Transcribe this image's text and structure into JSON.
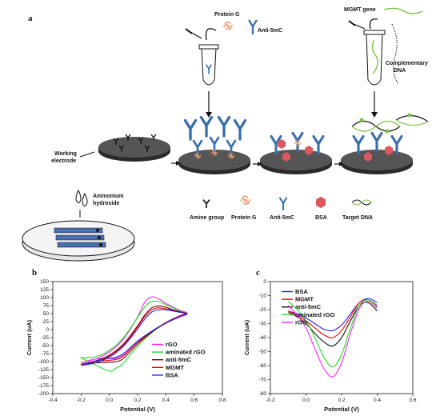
{
  "panels": {
    "a": "a",
    "b": "b",
    "c": "c"
  },
  "schematic": {
    "protein_g": "Protein G",
    "anti_5mc": "Anti-5mC",
    "mgmt_gene": "MGMT gene",
    "complementary_dna": [
      "Complementary",
      "DNA"
    ],
    "working_electrode": [
      "Working",
      "electrode"
    ],
    "ammonium_hydroxide": [
      "Ammonium",
      "hydroxide"
    ],
    "legend": [
      "Amine group",
      "Protein G",
      "Anti-5mC",
      "BSA",
      "Target DNA"
    ]
  },
  "colors": {
    "antibody": "#3a6fa8",
    "protein_g": "#e8956a",
    "bsa": "#d9595f",
    "dna_green": "#7cc144",
    "electrode_top": "#4a4a4a",
    "electrode_side": "#2a2a2a"
  },
  "chart_data": [
    {
      "type": "line",
      "panel": "b",
      "title": "",
      "xlabel": "Potential (V)",
      "ylabel": "Current (uA)",
      "xlim": [
        -0.4,
        0.8
      ],
      "ylim": [
        -200,
        150
      ],
      "xticks": [
        -0.4,
        -0.2,
        0,
        0.2,
        0.4,
        0.6,
        0.8
      ],
      "xtick_labels": [
        "-0.4",
        "-0.2",
        "0.0",
        "0.2",
        "0.4",
        "0.6",
        "0.8"
      ],
      "yticks": [
        -200,
        -175,
        -150,
        -125,
        -100,
        -75,
        -50,
        -25,
        0,
        25,
        50,
        75,
        100,
        125,
        150
      ],
      "legend_position": "bottom-right",
      "series": [
        {
          "name": "rGO",
          "color": "#ff22ff",
          "closed": true,
          "x": [
            -0.2,
            -0.1,
            0.0,
            0.1,
            0.2,
            0.25,
            0.3,
            0.35,
            0.4,
            0.45,
            0.5,
            0.55,
            0.5,
            0.4,
            0.3,
            0.2,
            0.1,
            0.05,
            0.0,
            -0.1,
            -0.2
          ],
          "y": [
            -103,
            -92,
            -70,
            -30,
            40,
            85,
            102,
            96,
            82,
            70,
            60,
            52,
            44,
            22,
            -5,
            -40,
            -80,
            -90,
            -90,
            -92,
            -103
          ]
        },
        {
          "name": "aminated rGO",
          "color": "#22dd22",
          "closed": true,
          "x": [
            -0.2,
            -0.1,
            0.0,
            0.1,
            0.2,
            0.25,
            0.3,
            0.35,
            0.4,
            0.45,
            0.5,
            0.55,
            0.5,
            0.4,
            0.3,
            0.2,
            0.1,
            0.05,
            0.0,
            -0.1,
            -0.2
          ],
          "y": [
            -88,
            -85,
            -65,
            -25,
            38,
            70,
            88,
            87,
            78,
            68,
            58,
            50,
            42,
            20,
            -10,
            -52,
            -105,
            -120,
            -130,
            -110,
            -88
          ]
        },
        {
          "name": "anti-5mC",
          "color": "#660000",
          "closed": true,
          "x": [
            -0.2,
            -0.1,
            0.0,
            0.1,
            0.2,
            0.25,
            0.3,
            0.35,
            0.4,
            0.45,
            0.5,
            0.55,
            0.5,
            0.4,
            0.3,
            0.2,
            0.1,
            0.05,
            0.0,
            -0.1,
            -0.2
          ],
          "y": [
            -108,
            -98,
            -80,
            -45,
            12,
            45,
            68,
            74,
            70,
            62,
            56,
            50,
            42,
            22,
            -8,
            -45,
            -90,
            -100,
            -102,
            -104,
            -108
          ]
        },
        {
          "name": "MGMT",
          "color": "#ee0000",
          "closed": true,
          "x": [
            -0.2,
            -0.1,
            0.0,
            0.1,
            0.2,
            0.25,
            0.3,
            0.35,
            0.4,
            0.45,
            0.5,
            0.55,
            0.5,
            0.4,
            0.3,
            0.2,
            0.1,
            0.05,
            0.0,
            -0.1,
            -0.2
          ],
          "y": [
            -110,
            -100,
            -82,
            -48,
            8,
            40,
            62,
            68,
            65,
            60,
            55,
            49,
            41,
            21,
            -6,
            -40,
            -82,
            -93,
            -96,
            -100,
            -110
          ]
        },
        {
          "name": "BSA",
          "color": "#2222ee",
          "closed": true,
          "x": [
            -0.2,
            -0.1,
            0.0,
            0.1,
            0.2,
            0.25,
            0.3,
            0.35,
            0.4,
            0.45,
            0.5,
            0.55,
            0.5,
            0.4,
            0.3,
            0.2,
            0.1,
            0.05,
            0.0,
            -0.1,
            -0.2
          ],
          "y": [
            -112,
            -104,
            -86,
            -52,
            2,
            32,
            55,
            62,
            62,
            58,
            54,
            48,
            40,
            20,
            -5,
            -36,
            -75,
            -86,
            -90,
            -98,
            -112
          ]
        }
      ]
    },
    {
      "type": "line",
      "panel": "c",
      "title": "",
      "xlabel": "Potential (V)",
      "ylabel": "Current (uA)",
      "xlim": [
        -0.2,
        0.6
      ],
      "ylim": [
        -80,
        0
      ],
      "xticks": [
        -0.2,
        0,
        0.2,
        0.4,
        0.6
      ],
      "xtick_labels": [
        "-0.2",
        "0.0",
        "0.2",
        "0.4",
        "0.6"
      ],
      "yticks": [
        -80,
        -70,
        -60,
        -50,
        -40,
        -30,
        -20,
        -10,
        0
      ],
      "legend_position": "top-left",
      "series": [
        {
          "name": "BSA",
          "color": "#2222ee",
          "closed": false,
          "x": [
            -0.1,
            -0.05,
            0.0,
            0.05,
            0.1,
            0.15,
            0.2,
            0.25,
            0.3,
            0.35,
            0.4
          ],
          "y": [
            -21,
            -23,
            -26,
            -30,
            -34,
            -35,
            -31,
            -23,
            -15,
            -12,
            -15
          ]
        },
        {
          "name": "MGMT",
          "color": "#ee0000",
          "closed": false,
          "x": [
            -0.1,
            -0.05,
            0.0,
            0.05,
            0.1,
            0.15,
            0.2,
            0.25,
            0.3,
            0.35,
            0.4
          ],
          "y": [
            -21,
            -24,
            -28,
            -33,
            -38,
            -40,
            -35,
            -25,
            -15,
            -13,
            -17
          ]
        },
        {
          "name": "anti-5mC",
          "color": "#111111",
          "closed": false,
          "x": [
            -0.1,
            -0.05,
            0.0,
            0.05,
            0.1,
            0.15,
            0.2,
            0.25,
            0.3,
            0.35,
            0.4
          ],
          "y": [
            -22,
            -25,
            -30,
            -37,
            -43,
            -46,
            -40,
            -28,
            -17,
            -15,
            -21
          ]
        },
        {
          "name": "aminated rGO",
          "color": "#22dd22",
          "closed": false,
          "x": [
            -0.1,
            -0.05,
            0.0,
            0.05,
            0.1,
            0.15,
            0.2,
            0.25,
            0.3,
            0.35,
            0.4
          ],
          "y": [
            -14,
            -20,
            -28,
            -40,
            -54,
            -61,
            -52,
            -33,
            -17,
            -13,
            -18
          ]
        },
        {
          "name": "rGO",
          "color": "#ff22ff",
          "closed": false,
          "x": [
            -0.1,
            -0.05,
            0.0,
            0.05,
            0.1,
            0.15,
            0.2,
            0.25,
            0.3,
            0.35,
            0.4
          ],
          "y": [
            -17,
            -24,
            -33,
            -48,
            -62,
            -68,
            -58,
            -37,
            -19,
            -14,
            -19
          ]
        }
      ]
    }
  ]
}
